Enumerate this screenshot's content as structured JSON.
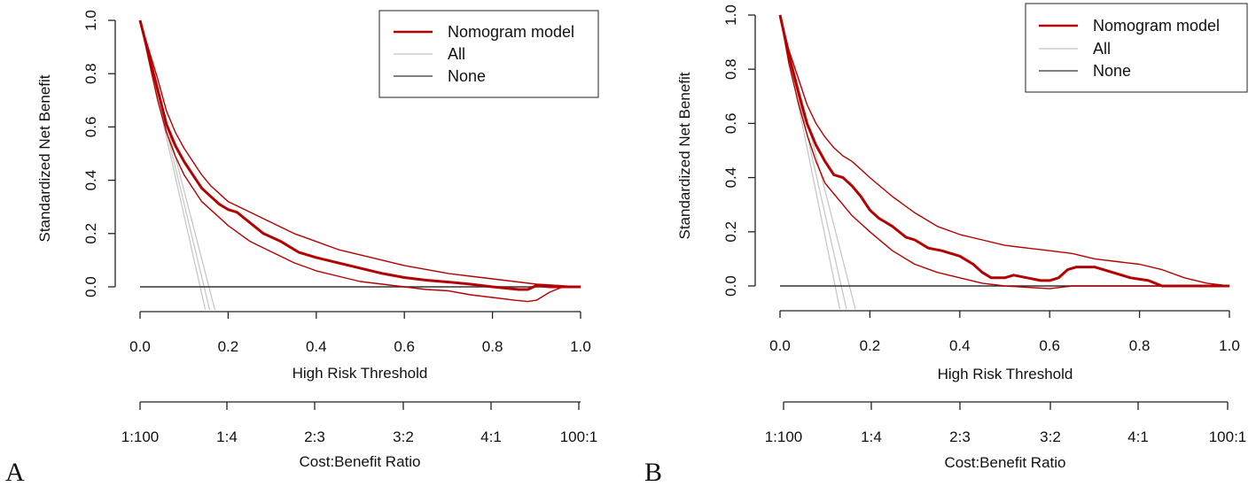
{
  "figure": {
    "colors": {
      "model": "#b30000",
      "all": "#c4c4c4",
      "none": "#333333",
      "axis": "#222222"
    }
  },
  "chart_data": [
    {
      "panel": "A",
      "type": "line",
      "title": "",
      "xlabel": "High Risk Threshold",
      "ylabel": "Standardized Net Benefit",
      "xlim": [
        0,
        1
      ],
      "ylim": [
        0,
        1
      ],
      "xticks": [
        "0.0",
        "0.2",
        "0.4",
        "0.6",
        "0.8",
        "1.0"
      ],
      "yticks": [
        "0.0",
        "0.2",
        "0.4",
        "0.6",
        "0.8",
        "1.0"
      ],
      "cost_benefit": {
        "label": "Cost:Benefit Ratio",
        "ticks": [
          "1:100",
          "1:4",
          "2:3",
          "3:2",
          "4:1",
          "100:1"
        ]
      },
      "legend": {
        "position": "top-right",
        "entries": [
          "Nomogram model",
          "All",
          "None"
        ]
      },
      "series": [
        {
          "name": "Nomogram model",
          "role": "model",
          "x": [
            0,
            0.02,
            0.04,
            0.06,
            0.08,
            0.1,
            0.12,
            0.14,
            0.16,
            0.18,
            0.2,
            0.22,
            0.25,
            0.28,
            0.32,
            0.36,
            0.4,
            0.45,
            0.5,
            0.55,
            0.6,
            0.65,
            0.7,
            0.75,
            0.8,
            0.83,
            0.86,
            0.88,
            0.9,
            0.93,
            0.96,
            1.0
          ],
          "y": [
            1.0,
            0.87,
            0.74,
            0.61,
            0.53,
            0.47,
            0.42,
            0.37,
            0.34,
            0.31,
            0.29,
            0.28,
            0.24,
            0.2,
            0.17,
            0.13,
            0.11,
            0.09,
            0.07,
            0.05,
            0.035,
            0.025,
            0.018,
            0.01,
            0.0,
            -0.005,
            -0.01,
            -0.01,
            0.005,
            0.0,
            0.0,
            0.0
          ]
        },
        {
          "name": "Nomogram model upper CI",
          "role": "model-ci",
          "x": [
            0,
            0.02,
            0.04,
            0.06,
            0.08,
            0.1,
            0.12,
            0.14,
            0.16,
            0.18,
            0.2,
            0.25,
            0.3,
            0.35,
            0.4,
            0.45,
            0.5,
            0.55,
            0.6,
            0.65,
            0.7,
            0.75,
            0.8,
            0.85,
            0.9,
            0.95,
            1.0
          ],
          "y": [
            1.0,
            0.89,
            0.78,
            0.66,
            0.58,
            0.52,
            0.47,
            0.42,
            0.38,
            0.35,
            0.32,
            0.28,
            0.24,
            0.2,
            0.17,
            0.14,
            0.12,
            0.1,
            0.08,
            0.065,
            0.05,
            0.04,
            0.03,
            0.02,
            0.01,
            0.005,
            0.0
          ]
        },
        {
          "name": "Nomogram model lower CI",
          "role": "model-ci",
          "x": [
            0,
            0.02,
            0.04,
            0.06,
            0.08,
            0.1,
            0.12,
            0.14,
            0.16,
            0.18,
            0.2,
            0.25,
            0.3,
            0.35,
            0.4,
            0.45,
            0.5,
            0.55,
            0.6,
            0.65,
            0.7,
            0.75,
            0.8,
            0.85,
            0.88,
            0.9,
            0.93,
            0.96,
            1.0
          ],
          "y": [
            1.0,
            0.85,
            0.7,
            0.58,
            0.49,
            0.42,
            0.37,
            0.32,
            0.29,
            0.26,
            0.23,
            0.17,
            0.13,
            0.09,
            0.06,
            0.04,
            0.02,
            0.01,
            0.0,
            -0.01,
            -0.015,
            -0.03,
            -0.04,
            -0.05,
            -0.055,
            -0.05,
            -0.02,
            0.0,
            0.0
          ]
        },
        {
          "name": "All",
          "role": "all",
          "x": [
            0,
            0.15
          ],
          "y": [
            1.0,
            -0.1
          ]
        },
        {
          "name": "All",
          "role": "all",
          "x": [
            0,
            0.16
          ],
          "y": [
            1.0,
            -0.1
          ]
        },
        {
          "name": "All",
          "role": "all",
          "x": [
            0,
            0.172
          ],
          "y": [
            1.0,
            -0.1
          ]
        },
        {
          "name": "None",
          "role": "none",
          "x": [
            0,
            1
          ],
          "y": [
            0,
            0
          ]
        }
      ]
    },
    {
      "panel": "B",
      "type": "line",
      "title": "",
      "xlabel": "High Risk Threshold",
      "ylabel": "Standardized Net Benefit",
      "xlim": [
        0,
        1
      ],
      "ylim": [
        0,
        1
      ],
      "xticks": [
        "0.0",
        "0.2",
        "0.4",
        "0.6",
        "0.8",
        "1.0"
      ],
      "yticks": [
        "0.0",
        "0.2",
        "0.4",
        "0.6",
        "0.8",
        "1.0"
      ],
      "cost_benefit": {
        "label": "Cost:Benefit Ratio",
        "ticks": [
          "1:100",
          "1:4",
          "2:3",
          "3:2",
          "4:1",
          "100:1"
        ]
      },
      "legend": {
        "position": "top-right",
        "entries": [
          "Nomogram model",
          "All",
          "None"
        ]
      },
      "series": [
        {
          "name": "Nomogram model",
          "role": "model",
          "x": [
            0,
            0.02,
            0.04,
            0.06,
            0.08,
            0.1,
            0.12,
            0.14,
            0.16,
            0.18,
            0.2,
            0.22,
            0.25,
            0.28,
            0.3,
            0.33,
            0.36,
            0.4,
            0.43,
            0.45,
            0.47,
            0.5,
            0.52,
            0.55,
            0.58,
            0.6,
            0.62,
            0.64,
            0.66,
            0.7,
            0.74,
            0.78,
            0.82,
            0.85,
            0.9,
            0.95,
            1.0
          ],
          "y": [
            1.0,
            0.85,
            0.72,
            0.6,
            0.52,
            0.46,
            0.41,
            0.4,
            0.37,
            0.33,
            0.28,
            0.25,
            0.22,
            0.18,
            0.17,
            0.14,
            0.13,
            0.11,
            0.08,
            0.05,
            0.03,
            0.03,
            0.04,
            0.03,
            0.02,
            0.02,
            0.03,
            0.06,
            0.07,
            0.07,
            0.05,
            0.03,
            0.02,
            0.0,
            0.0,
            0.0,
            0.0
          ]
        },
        {
          "name": "Nomogram model upper CI",
          "role": "model-ci",
          "x": [
            0,
            0.02,
            0.04,
            0.06,
            0.08,
            0.1,
            0.12,
            0.14,
            0.16,
            0.18,
            0.2,
            0.25,
            0.3,
            0.35,
            0.4,
            0.45,
            0.5,
            0.55,
            0.6,
            0.65,
            0.7,
            0.75,
            0.8,
            0.85,
            0.9,
            0.95,
            1.0
          ],
          "y": [
            1.0,
            0.87,
            0.77,
            0.67,
            0.6,
            0.55,
            0.51,
            0.48,
            0.46,
            0.43,
            0.4,
            0.33,
            0.27,
            0.22,
            0.19,
            0.17,
            0.15,
            0.14,
            0.13,
            0.12,
            0.1,
            0.09,
            0.08,
            0.06,
            0.03,
            0.01,
            0.0
          ]
        },
        {
          "name": "Nomogram model lower CI",
          "role": "model-ci",
          "x": [
            0,
            0.02,
            0.04,
            0.06,
            0.08,
            0.1,
            0.12,
            0.14,
            0.16,
            0.18,
            0.2,
            0.25,
            0.3,
            0.35,
            0.4,
            0.45,
            0.5,
            0.55,
            0.6,
            0.65,
            0.7,
            0.8,
            0.9,
            1.0
          ],
          "y": [
            1.0,
            0.82,
            0.68,
            0.56,
            0.46,
            0.38,
            0.34,
            0.3,
            0.26,
            0.23,
            0.2,
            0.13,
            0.08,
            0.05,
            0.03,
            0.01,
            0.0,
            -0.005,
            -0.01,
            0.0,
            0.0,
            0.0,
            0.0,
            0.0
          ]
        },
        {
          "name": "All",
          "role": "all",
          "x": [
            0,
            0.135
          ],
          "y": [
            1.0,
            -0.1
          ]
        },
        {
          "name": "All",
          "role": "all",
          "x": [
            0,
            0.15
          ],
          "y": [
            1.0,
            -0.1
          ]
        },
        {
          "name": "All",
          "role": "all",
          "x": [
            0,
            0.17
          ],
          "y": [
            1.0,
            -0.1
          ]
        },
        {
          "name": "None",
          "role": "none",
          "x": [
            0,
            1
          ],
          "y": [
            0,
            0
          ]
        }
      ]
    }
  ]
}
